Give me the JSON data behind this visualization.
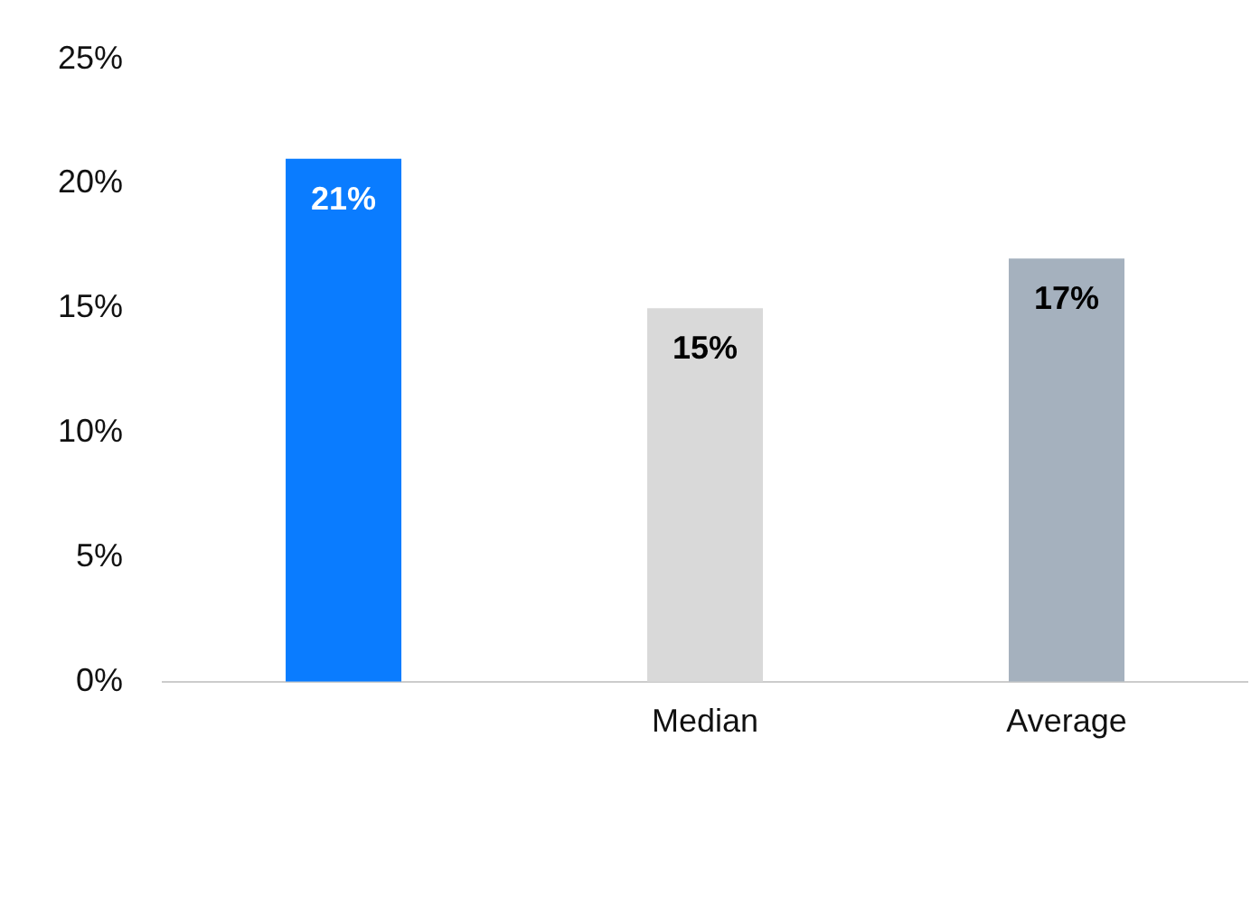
{
  "chart_data": {
    "type": "bar",
    "categories": [
      null,
      "Median",
      "Average"
    ],
    "values": [
      21,
      15,
      17
    ],
    "colors": [
      "#0a7cff",
      "#d9d9d9",
      "#a5b1be"
    ],
    "ylim": [
      0,
      25
    ],
    "yticks": [
      {
        "value": 0,
        "label": "0%"
      },
      {
        "value": 5,
        "label": "5%"
      },
      {
        "value": 10,
        "label": "10%"
      },
      {
        "value": 15,
        "label": "15%"
      },
      {
        "value": 20,
        "label": "20%"
      },
      {
        "value": 25,
        "label": "25%"
      }
    ],
    "value_labels": [
      "21%",
      "15%",
      "17%"
    ],
    "grid": false,
    "legend": false
  }
}
